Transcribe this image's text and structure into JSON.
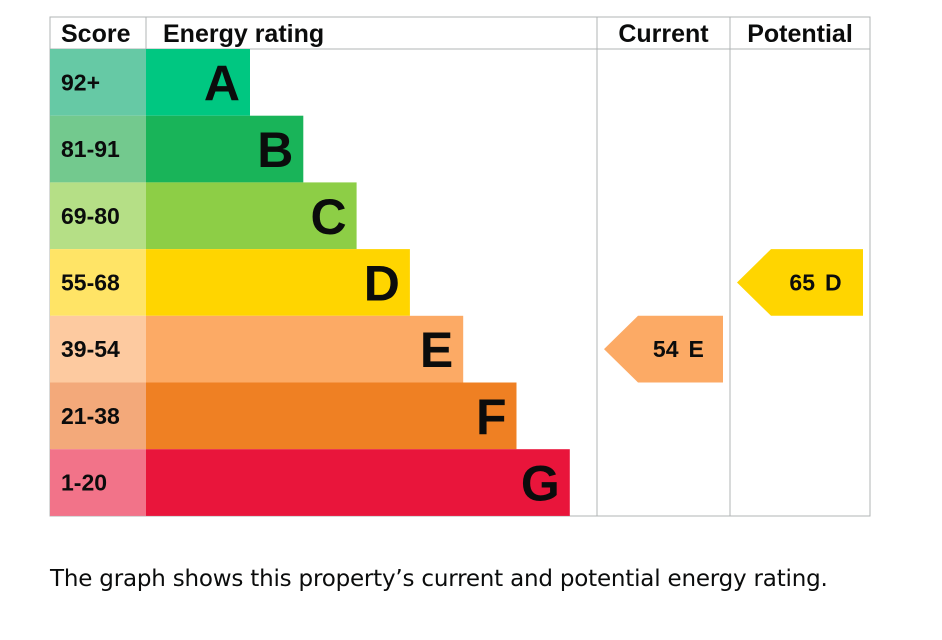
{
  "chart_data": {
    "type": "bar",
    "headers": {
      "score": "Score",
      "rating": "Energy rating",
      "current": "Current",
      "potential": "Potential"
    },
    "bands": [
      {
        "letter": "A",
        "score": "92+",
        "min": 92,
        "max": 100,
        "color": "#00c781",
        "score_bg": "#66c9a5"
      },
      {
        "letter": "B",
        "score": "81-91",
        "min": 81,
        "max": 91,
        "color": "#19b459",
        "score_bg": "#73c98e"
      },
      {
        "letter": "C",
        "score": "69-80",
        "min": 69,
        "max": 80,
        "color": "#8dce46",
        "score_bg": "#b5df86"
      },
      {
        "letter": "D",
        "score": "55-68",
        "min": 55,
        "max": 68,
        "color": "#ffd500",
        "score_bg": "#ffe466"
      },
      {
        "letter": "E",
        "score": "39-54",
        "min": 39,
        "max": 54,
        "color": "#fcaa65",
        "score_bg": "#fdcaa0"
      },
      {
        "letter": "F",
        "score": "21-38",
        "min": 21,
        "max": 38,
        "color": "#ef8023",
        "score_bg": "#f3a97a"
      },
      {
        "letter": "G",
        "score": "1-20",
        "min": 1,
        "max": 20,
        "color": "#e9153b",
        "score_bg": "#f27389"
      }
    ],
    "current": {
      "value": 54,
      "letter": "E",
      "color": "#fcaa65"
    },
    "potential": {
      "value": 65,
      "letter": "D",
      "color": "#ffd500"
    }
  },
  "caption": "The graph shows this property’s current and potential energy rating."
}
